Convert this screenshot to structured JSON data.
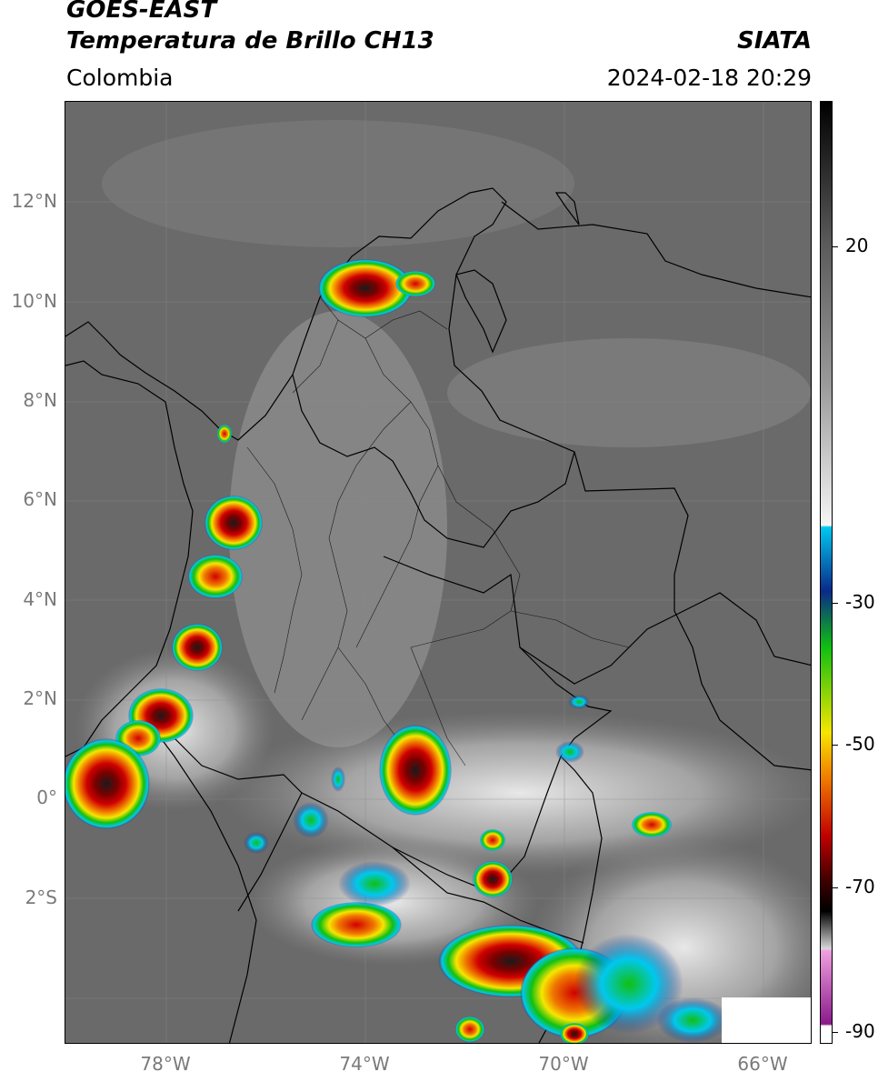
{
  "header": {
    "satellite": "GOES-EAST",
    "product": "Temperatura de Brillo CH13",
    "region": "Colombia",
    "organization": "SIATA",
    "datetime": "2024-02-18 20:29"
  },
  "map": {
    "lat_labels": [
      "12°N",
      "10°N",
      "8°N",
      "6°N",
      "4°N",
      "2°N",
      "0°",
      "2°S"
    ],
    "lon_labels": [
      "78°W",
      "74°W",
      "70°W",
      "66°W"
    ],
    "background_color": "#6d6d6d",
    "border_color": "#000000"
  },
  "colorbar": {
    "tick_labels": [
      "20",
      "-30",
      "-50",
      "-70",
      "-90"
    ],
    "colors": {
      "warm_gray": "#6d6d6d",
      "cold_white": "#f2f2f2",
      "cyan": "#00c8f0",
      "blue": "#0a2a8a",
      "green": "#10c010",
      "yellow": "#f6e600",
      "orange": "#f07800",
      "red": "#c00000",
      "dark": "#1a1a1a",
      "magenta": "#d040c0"
    }
  }
}
